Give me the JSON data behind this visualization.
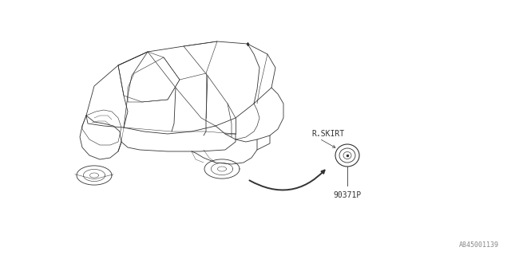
{
  "bg_color": "#ffffff",
  "car_color": "#333333",
  "text_color": "#333333",
  "dim_color": "#888888",
  "label_rskirt": "R.SKIRT",
  "label_partnum": "90371P",
  "label_diagram_id": "A845001139",
  "font_size_label": 7,
  "font_size_id": 6,
  "fig_width": 6.4,
  "fig_height": 3.2,
  "dpi": 100
}
